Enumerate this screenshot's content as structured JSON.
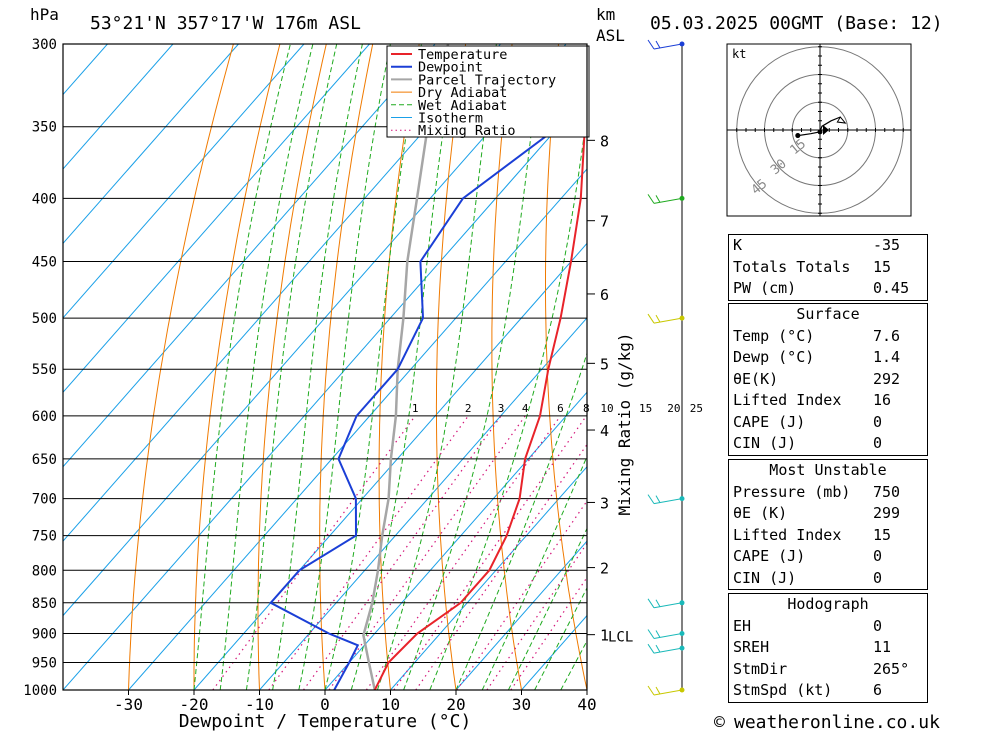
{
  "header": {
    "pressure_unit": "hPa",
    "location": "53°21'N  357°17'W  176m  ASL",
    "km_unit": "km",
    "asl": "ASL",
    "datetime": "05.03.2025  00GMT  (Base: 12)"
  },
  "colors": {
    "temperature": "#e8232a",
    "dewpoint": "#1b3fd6",
    "parcel": "#a6a6a6",
    "dry_adiabat": "#f07a00",
    "wet_adiabat": "#1faa1f",
    "isotherm": "#1aa0e8",
    "mixing_ratio": "#d4167a"
  },
  "chart_data": {
    "type": "line",
    "xlabel": "Dewpoint / Temperature (°C)",
    "ylabel": "",
    "mixing_ratio_label": "Mixing Ratio (g/kg)",
    "xlim": [
      -40,
      40
    ],
    "ylim": [
      1000,
      300
    ],
    "x_ticks": [
      -30,
      -20,
      -10,
      0,
      10,
      20,
      30,
      40
    ],
    "pressure_levels": [
      300,
      350,
      400,
      450,
      500,
      550,
      600,
      650,
      700,
      750,
      800,
      850,
      900,
      950,
      1000
    ],
    "height_ticks": [
      {
        "label": "8",
        "p": 359
      },
      {
        "label": "7",
        "p": 417
      },
      {
        "label": "6",
        "p": 478
      },
      {
        "label": "5",
        "p": 544
      },
      {
        "label": "4",
        "p": 616
      },
      {
        "label": "3",
        "p": 705
      },
      {
        "label": "2",
        "p": 796
      },
      {
        "label": "1",
        "p": 902
      }
    ],
    "lcl": {
      "label": "LCL",
      "p": 903
    },
    "mixing_ratio_ticks": [
      "1",
      "2",
      "3",
      "4",
      "6",
      "8",
      "10",
      "15",
      "20",
      "25"
    ],
    "legend": {
      "position": "top-center",
      "entries": [
        "Temperature",
        "Dewpoint",
        "Parcel Trajectory",
        "Dry Adiabat",
        "Wet Adiabat",
        "Isotherm",
        "Mixing Ratio"
      ]
    },
    "series": [
      {
        "name": "Temperature",
        "points": [
          [
            1000,
            7.6
          ],
          [
            950,
            6
          ],
          [
            900,
            6.5
          ],
          [
            850,
            9
          ],
          [
            800,
            9
          ],
          [
            750,
            7
          ],
          [
            700,
            4
          ],
          [
            650,
            -0.5
          ],
          [
            600,
            -4
          ],
          [
            550,
            -9
          ],
          [
            500,
            -14
          ],
          [
            450,
            -20
          ],
          [
            400,
            -27
          ],
          [
            350,
            -36
          ],
          [
            300,
            -43
          ]
        ]
      },
      {
        "name": "Dewpoint",
        "points": [
          [
            1000,
            1.4
          ],
          [
            950,
            0
          ],
          [
            920,
            -1
          ],
          [
            900,
            -7
          ],
          [
            850,
            -20
          ],
          [
            800,
            -20
          ],
          [
            750,
            -16
          ],
          [
            700,
            -21
          ],
          [
            650,
            -29
          ],
          [
            600,
            -32
          ],
          [
            550,
            -32
          ],
          [
            500,
            -35
          ],
          [
            450,
            -43
          ],
          [
            400,
            -45
          ],
          [
            350,
            -40
          ],
          [
            300,
            -16
          ]
        ]
      },
      {
        "name": "Parcel Trajectory",
        "points": [
          [
            1000,
            7.6
          ],
          [
            950,
            3
          ],
          [
            903,
            -1.5
          ],
          [
            850,
            -4.5
          ],
          [
            800,
            -8
          ],
          [
            750,
            -12
          ],
          [
            700,
            -16
          ],
          [
            650,
            -21
          ],
          [
            600,
            -26
          ],
          [
            550,
            -32
          ],
          [
            500,
            -38
          ],
          [
            450,
            -45
          ],
          [
            400,
            -52
          ],
          [
            350,
            -60
          ],
          [
            300,
            -68
          ]
        ]
      }
    ],
    "winds": [
      {
        "p": 1000,
        "color": "#c8c800"
      },
      {
        "p": 925,
        "color": "#1ab9b9"
      },
      {
        "p": 900,
        "color": "#1ab9b9"
      },
      {
        "p": 850,
        "color": "#1ab9b9"
      },
      {
        "p": 700,
        "color": "#1ab9b9"
      },
      {
        "p": 500,
        "color": "#c8c800"
      },
      {
        "p": 400,
        "color": "#1faa1f"
      },
      {
        "p": 300,
        "color": "#1b3fd6"
      }
    ],
    "hodograph": {
      "unit": "kt",
      "ring_labels": [
        "15",
        "30",
        "45"
      ],
      "points": [
        [
          -12,
          -3
        ],
        [
          -5,
          -2
        ],
        [
          0,
          -1
        ],
        [
          1,
          2
        ],
        [
          6,
          5
        ],
        [
          11,
          7
        ]
      ]
    }
  },
  "indices": {
    "general": [
      {
        "label": "K",
        "value": "-35"
      },
      {
        "label": "Totals Totals",
        "value": "15"
      },
      {
        "label": "PW (cm)",
        "value": "0.45"
      }
    ],
    "surface": {
      "title": "Surface",
      "rows": [
        {
          "label": "Temp (°C)",
          "value": "7.6"
        },
        {
          "label": "Dewp (°C)",
          "value": "1.4"
        },
        {
          "label": "θE(K)",
          "value": "292"
        },
        {
          "label": "Lifted Index",
          "value": "16"
        },
        {
          "label": "CAPE (J)",
          "value": "0"
        },
        {
          "label": "CIN (J)",
          "value": "0"
        }
      ]
    },
    "most_unstable": {
      "title": "Most Unstable",
      "rows": [
        {
          "label": "Pressure (mb)",
          "value": "750"
        },
        {
          "label": "θE (K)",
          "value": "299"
        },
        {
          "label": "Lifted Index",
          "value": "15"
        },
        {
          "label": "CAPE (J)",
          "value": "0"
        },
        {
          "label": "CIN (J)",
          "value": "0"
        }
      ]
    },
    "hodograph": {
      "title": "Hodograph",
      "rows": [
        {
          "label": "EH",
          "value": "0"
        },
        {
          "label": "SREH",
          "value": "11"
        },
        {
          "label": "StmDir",
          "value": "265°"
        },
        {
          "label": "StmSpd (kt)",
          "value": "6"
        }
      ]
    }
  },
  "footer": {
    "copyright_symbol": "©",
    "site": "weatheronline.co.uk"
  }
}
